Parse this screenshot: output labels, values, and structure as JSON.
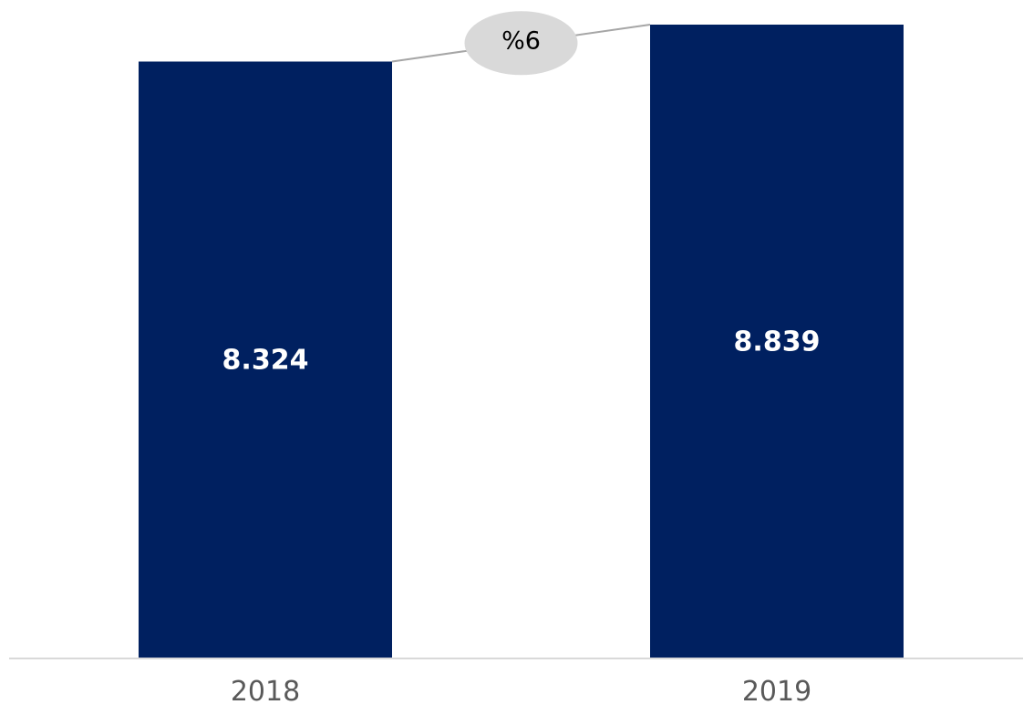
{
  "chart_data": {
    "type": "bar",
    "categories": [
      "2018",
      "2019"
    ],
    "values": [
      8324,
      8839
    ],
    "value_labels": [
      "8.324",
      "8.839"
    ],
    "bar_color": "#002060",
    "axis_color": "#d9d9d9",
    "growth": {
      "label": "%6",
      "bubble_color": "#d9d9d9",
      "connector_color": "#a6a6a6"
    },
    "grid": false,
    "legend": "none"
  }
}
